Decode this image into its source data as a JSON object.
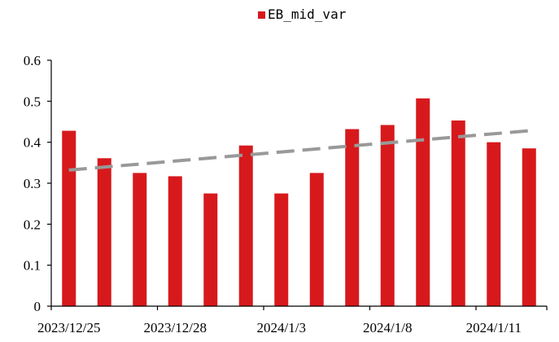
{
  "chart_data": {
    "type": "bar",
    "legend": {
      "label": "EB_mid_var",
      "position": "top-center"
    },
    "series": [
      {
        "name": "EB_mid_var",
        "color": "#d7191c",
        "values": [
          0.428,
          0.361,
          0.325,
          0.317,
          0.275,
          0.392,
          0.275,
          0.325,
          0.432,
          0.442,
          0.507,
          0.453,
          0.4,
          0.385
        ]
      }
    ],
    "trendline": {
      "type": "linear",
      "style": "dashed",
      "color": "#999999",
      "start": 0.332,
      "end": 0.428
    },
    "x_tick_labels": [
      "2023/12/25",
      "2023/12/28",
      "2024/1/3",
      "2024/1/8",
      "2024/1/11"
    ],
    "x_tick_label_positions": [
      0,
      3,
      6,
      9,
      12
    ],
    "ylim": [
      0,
      0.6
    ],
    "y_ticks": [
      "0",
      "0.1",
      "0.2",
      "0.3",
      "0.4",
      "0.5",
      "0.6"
    ],
    "grid": false
  }
}
